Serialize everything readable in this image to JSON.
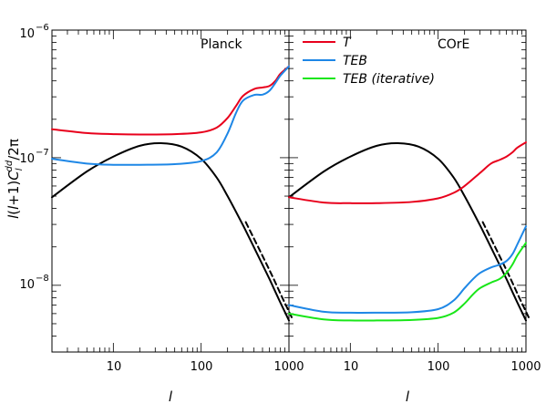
{
  "chart_data": {
    "type": "line",
    "ylabel": "l(l+1)C_l^dd/2π",
    "xlabel": "l",
    "xscale": "log",
    "yscale": "log",
    "xlim": [
      2,
      1000
    ],
    "ylim": [
      3e-09,
      1e-06
    ],
    "grid": false,
    "xticklabels": [
      "10",
      "100",
      "1000"
    ],
    "y_exponent_labels": [
      "−6",
      "−7",
      "−8"
    ],
    "colors": {
      "T": "#e8001c",
      "TEB": "#1e87e6",
      "TEB_iter": "#19e619",
      "signal": "#000000"
    },
    "panels": [
      {
        "name": "Planck",
        "legend": [],
        "series": [
          {
            "key": "signal",
            "x": [
              2,
              5,
              10,
              20,
              35,
              60,
              100,
              150,
              200,
              300,
              400,
              500,
              600,
              700,
              800,
              1000
            ],
            "values": [
              4.9e-08,
              7.8e-08,
              1.02e-07,
              1.24e-07,
              1.3e-07,
              1.22e-07,
              9.8e-08,
              7e-08,
              5e-08,
              2.95e-08,
              1.98e-08,
              1.45e-08,
              1.12e-08,
              8.9e-09,
              7.3e-09,
              5.3e-09
            ]
          },
          {
            "key": "T",
            "x": [
              2,
              5,
              10,
              20,
              50,
              100,
              150,
              200,
              250,
              300,
              400,
              500,
              600,
              700,
              800,
              1000
            ],
            "values": [
              1.67e-07,
              1.56e-07,
              1.53e-07,
              1.52e-07,
              1.53e-07,
              1.58e-07,
              1.72e-07,
              2.05e-07,
              2.55e-07,
              3.05e-07,
              3.45e-07,
              3.55e-07,
              3.65e-07,
              4e-07,
              4.55e-07,
              5.2e-07
            ]
          },
          {
            "key": "TEB",
            "x": [
              2,
              5,
              10,
              20,
              50,
              100,
              150,
              200,
              250,
              300,
              400,
              500,
              600,
              700,
              800,
              1000
            ],
            "values": [
              9.8e-08,
              9e-08,
              8.8e-08,
              8.8e-08,
              8.9e-08,
              9.4e-08,
              1.1e-07,
              1.55e-07,
              2.25e-07,
              2.8e-07,
              3.1e-07,
              3.12e-07,
              3.35e-07,
              3.85e-07,
              4.4e-07,
              5.2e-07
            ]
          }
        ]
      },
      {
        "name": "COrE",
        "legend": [
          {
            "key": "T",
            "label": "T"
          },
          {
            "key": "TEB",
            "label": "TEB"
          },
          {
            "key": "TEB_iter",
            "label": "TEB (iterative)"
          }
        ],
        "series": [
          {
            "key": "signal",
            "x": [
              2,
              5,
              10,
              20,
              35,
              60,
              100,
              150,
              200,
              300,
              400,
              500,
              600,
              700,
              800,
              1000
            ],
            "values": [
              4.9e-08,
              7.8e-08,
              1.02e-07,
              1.24e-07,
              1.3e-07,
              1.22e-07,
              9.8e-08,
              7e-08,
              5e-08,
              2.95e-08,
              1.98e-08,
              1.45e-08,
              1.12e-08,
              8.9e-09,
              7.3e-09,
              5.3e-09
            ]
          },
          {
            "key": "T",
            "x": [
              2,
              5,
              10,
              20,
              50,
              100,
              150,
              200,
              300,
              400,
              500,
              600,
              700,
              800,
              1000
            ],
            "values": [
              4.9e-08,
              4.45e-08,
              4.4e-08,
              4.4e-08,
              4.5e-08,
              4.8e-08,
              5.3e-08,
              6e-08,
              7.6e-08,
              9e-08,
              9.6e-08,
              1.02e-07,
              1.1e-07,
              1.2e-07,
              1.32e-07
            ]
          },
          {
            "key": "TEB",
            "x": [
              2,
              5,
              10,
              20,
              50,
              100,
              150,
              200,
              250,
              300,
              400,
              500,
              600,
              700,
              800,
              1000
            ],
            "values": [
              7e-09,
              6.2e-09,
              6.1e-09,
              6.1e-09,
              6.15e-09,
              6.5e-09,
              7.6e-09,
              9.5e-09,
              1.12e-08,
              1.25e-08,
              1.38e-08,
              1.45e-08,
              1.55e-08,
              1.75e-08,
              2.1e-08,
              2.9e-08
            ]
          },
          {
            "key": "TEB_iter",
            "x": [
              2,
              5,
              10,
              20,
              50,
              100,
              150,
              200,
              250,
              300,
              400,
              500,
              600,
              700,
              800,
              1000
            ],
            "values": [
              6e-09,
              5.4e-09,
              5.3e-09,
              5.3e-09,
              5.35e-09,
              5.55e-09,
              6.1e-09,
              7.2e-09,
              8.5e-09,
              9.5e-09,
              1.05e-08,
              1.12e-08,
              1.25e-08,
              1.45e-08,
              1.72e-08,
              2.15e-08
            ]
          }
        ]
      }
    ]
  }
}
